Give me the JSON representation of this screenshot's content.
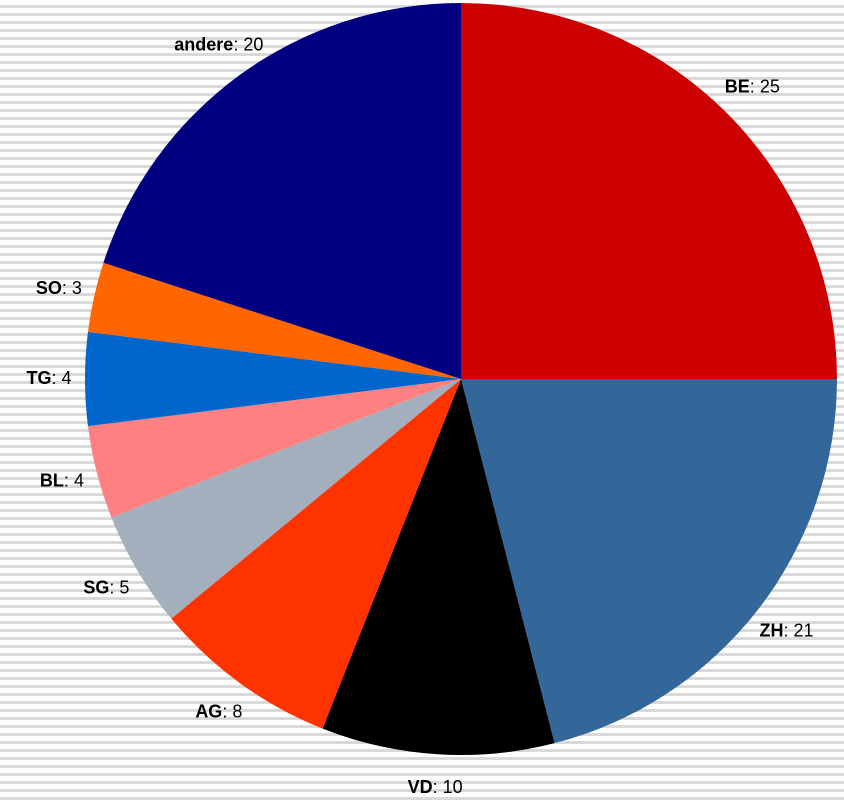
{
  "chart_data": {
    "type": "pie",
    "categories": [
      "BE",
      "ZH",
      "VD",
      "AG",
      "SG",
      "BL",
      "TG",
      "SO",
      "andere"
    ],
    "values": [
      25,
      21,
      10,
      8,
      5,
      4,
      4,
      3,
      20
    ],
    "colors": [
      "#cc0000",
      "#336699",
      "#000000",
      "#ff3300",
      "#a3afbd",
      "#ff8080",
      "#0066cc",
      "#ff6600",
      "#000080"
    ],
    "label_separator": ": "
  }
}
